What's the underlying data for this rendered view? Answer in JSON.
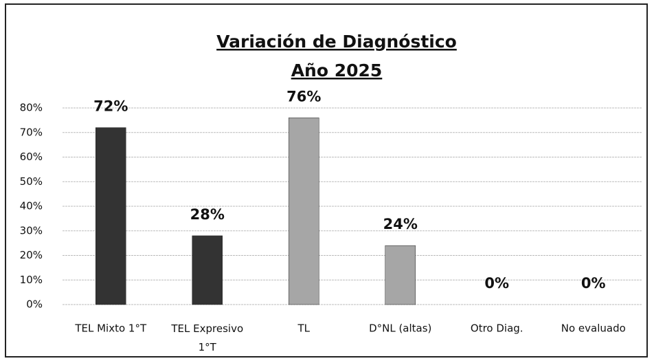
{
  "chart_data": {
    "type": "bar",
    "title": "Variación de Diagnóstico",
    "subtitle": "Año 2025",
    "categories": [
      "TEL Mixto 1°T",
      "TEL Expresivo 1°T",
      "TL",
      "D°NL (altas)",
      "Otro Diag.",
      "No evaluado"
    ],
    "values": [
      72,
      28,
      76,
      24,
      0,
      0
    ],
    "value_labels": [
      "72%",
      "28%",
      "76%",
      "24%",
      "0%",
      "0%"
    ],
    "colors": [
      "#333333",
      "#333333",
      "#a6a6a6",
      "#a6a6a6",
      "#a6a6a6",
      "#a6a6a6"
    ],
    "ylim": [
      0,
      80
    ],
    "yticks": [
      {
        "value": 0,
        "label": "0%"
      },
      {
        "value": 10,
        "label": "10%"
      },
      {
        "value": 20,
        "label": "20%"
      },
      {
        "value": 30,
        "label": "30%"
      },
      {
        "value": 40,
        "label": "40%"
      },
      {
        "value": 50,
        "label": "50%"
      },
      {
        "value": 60,
        "label": "60%"
      },
      {
        "value": 70,
        "label": "70%"
      },
      {
        "value": 80,
        "label": "80%"
      }
    ],
    "grid": true
  }
}
